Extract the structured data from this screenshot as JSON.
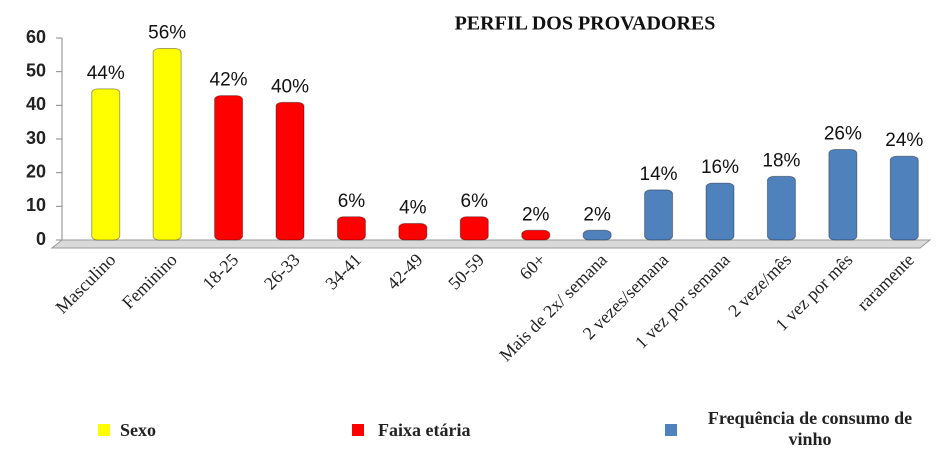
{
  "chart_data": {
    "type": "bar",
    "title": "PERFIL DOS PROVADORES",
    "categories": [
      "Masculino",
      "Feminino",
      "18-25",
      "26-33",
      "34-41",
      "42-49",
      "50-59",
      "60+",
      "Mais de 2x/ semana",
      "2 vezes/semana",
      "1 vez por semana",
      "2 veze/mês",
      "1 vez por mês",
      "raramente"
    ],
    "series": [
      {
        "name": "Sexo",
        "color": "#ffff00",
        "values": [
          44,
          56,
          null,
          null,
          null,
          null,
          null,
          null,
          null,
          null,
          null,
          null,
          null,
          null
        ],
        "value_labels": [
          "44%",
          "56%",
          null,
          null,
          null,
          null,
          null,
          null,
          null,
          null,
          null,
          null,
          null,
          null
        ]
      },
      {
        "name": "Faixa etária",
        "color": "#ff0000",
        "values": [
          null,
          null,
          42,
          40,
          6,
          4,
          6,
          2,
          null,
          null,
          null,
          null,
          null,
          null
        ],
        "value_labels": [
          null,
          null,
          "42%",
          "40%",
          "6%",
          "4%",
          "6%",
          "2%",
          null,
          null,
          null,
          null,
          null,
          null
        ]
      },
      {
        "name": "Frequência de consumo de vinho",
        "color": "#4f81bd",
        "values": [
          null,
          null,
          null,
          null,
          null,
          null,
          null,
          null,
          2,
          14,
          16,
          18,
          26,
          24
        ],
        "value_labels": [
          null,
          null,
          null,
          null,
          null,
          null,
          null,
          null,
          "2%",
          "14%",
          "16%",
          "18%",
          "26%",
          "24%"
        ]
      }
    ],
    "ylim": [
      0,
      60
    ],
    "yticks": [
      0,
      10,
      20,
      30,
      40,
      50,
      60
    ],
    "grid": false,
    "legend": "bottom"
  }
}
